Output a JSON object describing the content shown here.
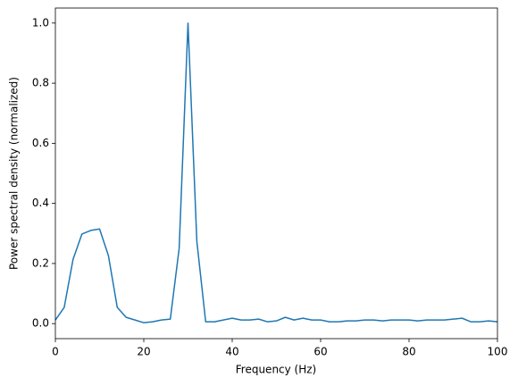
{
  "chart_data": {
    "type": "line",
    "xlabel": "Frequency (Hz)",
    "ylabel": "Power spectral density (normalized)",
    "x": [
      0,
      2,
      4,
      6,
      8,
      10,
      12,
      14,
      16,
      18,
      20,
      22,
      24,
      26,
      28,
      30,
      32,
      34,
      36,
      38,
      40,
      42,
      44,
      46,
      48,
      50,
      52,
      54,
      56,
      58,
      60,
      62,
      64,
      66,
      68,
      70,
      72,
      74,
      76,
      78,
      80,
      82,
      84,
      86,
      88,
      90,
      92,
      94,
      96,
      98,
      100
    ],
    "series": [
      {
        "color": "#1f77b4",
        "values": [
          0.012,
          0.054,
          0.214,
          0.298,
          0.31,
          0.315,
          0.226,
          0.054,
          0.021,
          0.012,
          0.003,
          0.006,
          0.012,
          0.015,
          0.25,
          1.0,
          0.274,
          0.006,
          0.006,
          0.012,
          0.018,
          0.012,
          0.012,
          0.015,
          0.006,
          0.009,
          0.021,
          0.012,
          0.018,
          0.012,
          0.012,
          0.006,
          0.006,
          0.009,
          0.009,
          0.012,
          0.012,
          0.009,
          0.012,
          0.012,
          0.012,
          0.009,
          0.012,
          0.012,
          0.012,
          0.015,
          0.018,
          0.006,
          0.006,
          0.009,
          0.006
        ]
      }
    ],
    "xlim": [
      0,
      100
    ],
    "xticks": [
      0,
      20,
      40,
      60,
      80,
      100
    ],
    "ylim": [
      -0.05,
      1.05
    ],
    "yticks": [
      {
        "value": 0,
        "label": "0.0"
      },
      {
        "value": 0.2,
        "label": "0.2"
      },
      {
        "value": 0.4,
        "label": "0.4"
      },
      {
        "value": 0.6,
        "label": "0.6"
      },
      {
        "value": 0.8,
        "label": "0.8"
      },
      {
        "value": 1,
        "label": "1.0"
      }
    ],
    "grid": false
  }
}
